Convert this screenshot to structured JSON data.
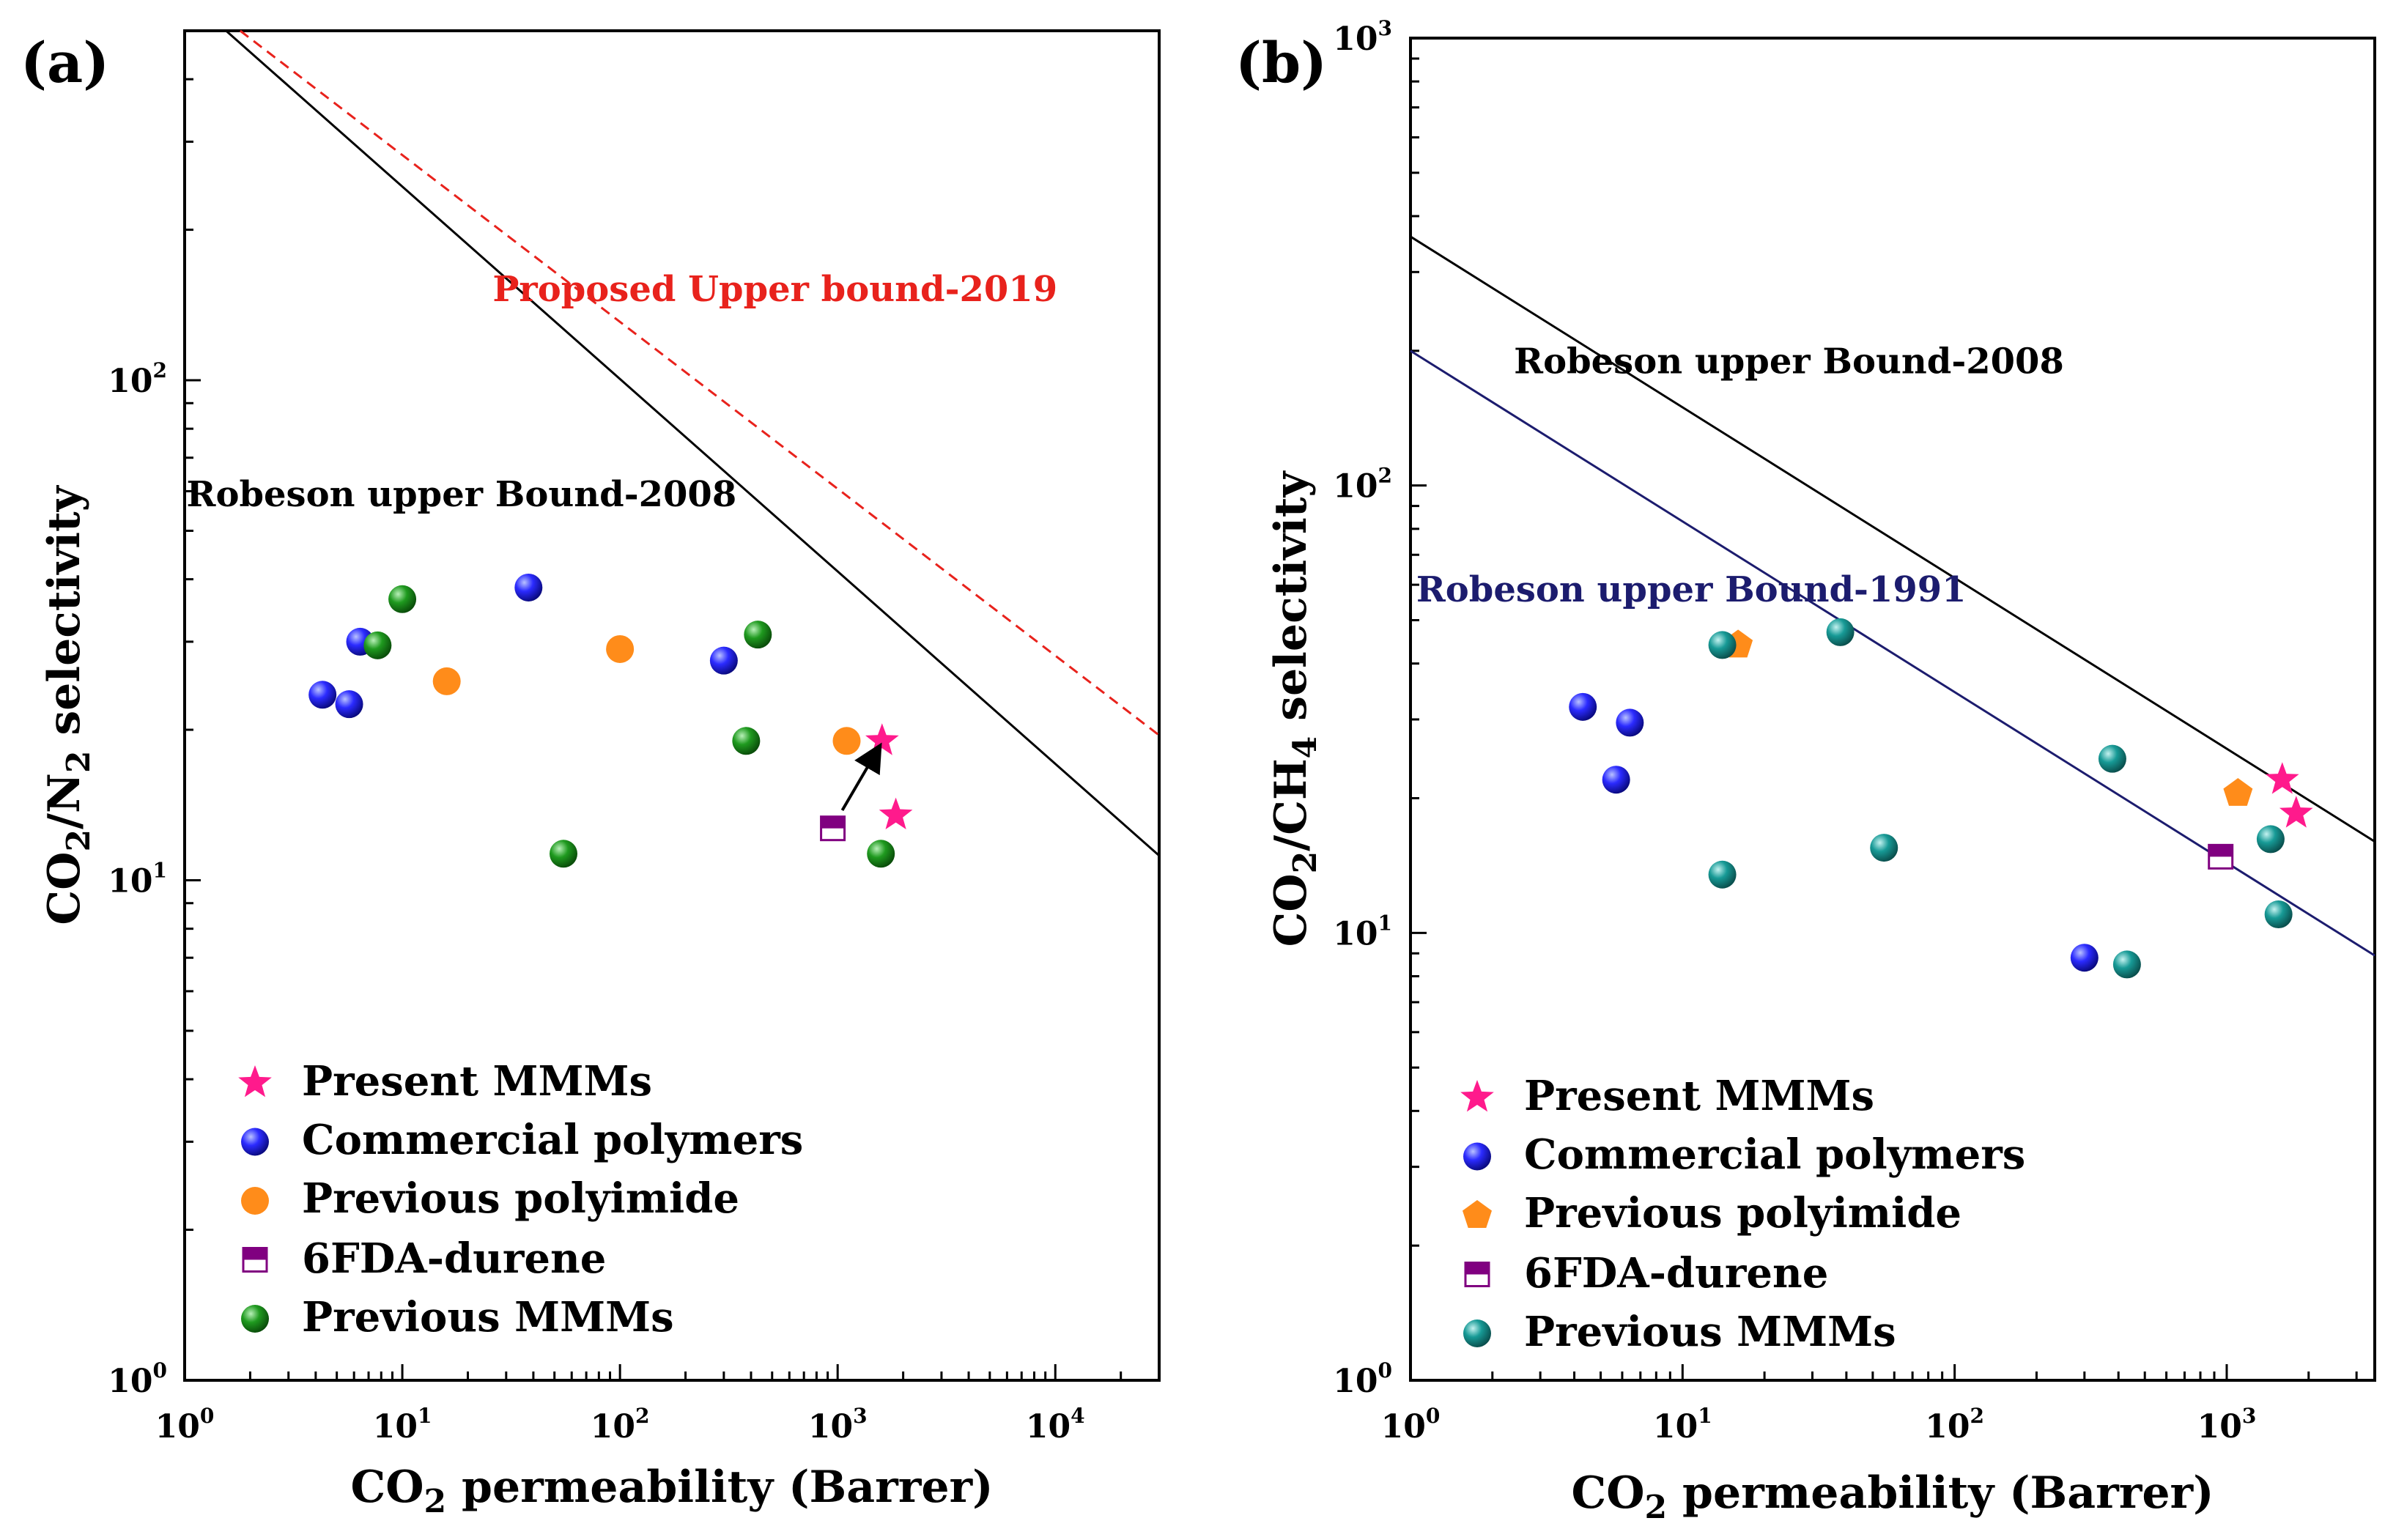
{
  "chart_data": [
    {
      "type": "scatter",
      "panel_label": "(a)",
      "xlabel": {
        "main": "CO",
        "sub": "2",
        "rest": " permeability (Barrer)"
      },
      "ylabel": {
        "p1": "CO",
        "s1": "2",
        "p2": "/N",
        "s2": "2",
        "p3": " selectivity"
      },
      "x_scale": "log",
      "y_scale": "log",
      "xlim": [
        1,
        30000
      ],
      "ylim": [
        1,
        500
      ],
      "x_ticks": [
        {
          "value": 1,
          "base": "10",
          "exp": "0"
        },
        {
          "value": 10,
          "base": "10",
          "exp": "1"
        },
        {
          "value": 100,
          "base": "10",
          "exp": "2"
        },
        {
          "value": 1000,
          "base": "10",
          "exp": "3"
        },
        {
          "value": 10000,
          "base": "10",
          "exp": "4"
        }
      ],
      "y_ticks": [
        {
          "value": 1,
          "base": "10",
          "exp": "0"
        },
        {
          "value": 10,
          "base": "10",
          "exp": "1"
        },
        {
          "value": 100,
          "base": "10",
          "exp": "2"
        }
      ],
      "lines": [
        {
          "name": "Robeson upper Bound-2008",
          "color": "#000000",
          "dash": false,
          "points": [
            [
              1.55,
              500
            ],
            [
              30000,
              11.2
            ]
          ]
        },
        {
          "name": "Proposed Upper bound-2019",
          "color": "#e8221c",
          "dash": true,
          "points": [
            [
              1.8,
              500
            ],
            [
              30000,
              19.5
            ]
          ]
        }
      ],
      "line_labels": [
        {
          "text": "Robeson upper Bound-2008",
          "color": "#000000",
          "at": [
            1.02,
            56
          ]
        },
        {
          "text": "Proposed Upper bound-2019",
          "color": "#e8221c",
          "at": [
            26,
            144
          ]
        }
      ],
      "series": [
        {
          "name": "Present MMMs",
          "marker": "star",
          "color": "#ff1a8c",
          "points": [
            [
              1600,
              19
            ],
            [
              1850,
              13.5
            ]
          ]
        },
        {
          "name": "Commercial polymers",
          "marker": "sphere",
          "color": "#1a1aff",
          "points": [
            [
              4.3,
              23.5
            ],
            [
              5.7,
              22.5
            ],
            [
              6.4,
              30
            ],
            [
              38,
              38.5
            ],
            [
              300,
              27.5
            ]
          ]
        },
        {
          "name": "Previous polyimide",
          "marker": "circle",
          "color": "#ff8c1a",
          "points": [
            [
              16,
              25
            ],
            [
              100,
              29
            ],
            [
              1100,
              19
            ]
          ]
        },
        {
          "name": "6FDA-durene",
          "marker": "halfsquare",
          "color": "#800080",
          "points": [
            [
              950,
              12.7
            ]
          ]
        },
        {
          "name": "Previous MMMs",
          "marker": "sphere",
          "color": "#1a8c1a",
          "points": [
            [
              10,
              36.5
            ],
            [
              7.7,
              29.5
            ],
            [
              55,
              11.3
            ],
            [
              380,
              19
            ],
            [
              430,
              31
            ],
            [
              1580,
              11.3
            ]
          ]
        }
      ],
      "arrow": {
        "from": [
          1050,
          13.8
        ],
        "to": [
          1500,
          18
        ]
      }
    },
    {
      "type": "scatter",
      "panel_label": "(b)",
      "xlabel": {
        "main": "CO",
        "sub": "2",
        "rest": " permeability (Barrer)"
      },
      "ylabel": {
        "p1": "CO",
        "s1": "2",
        "p2": "/CH",
        "s2": "4",
        "p3": " selectivity"
      },
      "x_scale": "log",
      "y_scale": "log",
      "xlim": [
        1,
        3500
      ],
      "ylim": [
        1,
        1000
      ],
      "x_ticks": [
        {
          "value": 1,
          "base": "10",
          "exp": "0"
        },
        {
          "value": 10,
          "base": "10",
          "exp": "1"
        },
        {
          "value": 100,
          "base": "10",
          "exp": "2"
        },
        {
          "value": 1000,
          "base": "10",
          "exp": "3"
        }
      ],
      "y_ticks": [
        {
          "value": 1,
          "base": "10",
          "exp": "0"
        },
        {
          "value": 10,
          "base": "10",
          "exp": "1"
        },
        {
          "value": 100,
          "base": "10",
          "exp": "2"
        },
        {
          "value": 1000,
          "base": "10",
          "exp": "3"
        }
      ],
      "lines": [
        {
          "name": "Robeson upper Bound-2008",
          "color": "#000000",
          "dash": false,
          "points": [
            [
              1,
              360
            ],
            [
              3500,
              16
            ]
          ]
        },
        {
          "name": "Robeson upper Bound-1991",
          "color": "#1c1c6e",
          "dash": false,
          "points": [
            [
              1,
              200
            ],
            [
              3500,
              8.9
            ]
          ]
        }
      ],
      "line_labels": [
        {
          "text": "Robeson upper Bound-2008",
          "color": "#000000",
          "at": [
            2.4,
            178
          ]
        },
        {
          "text": "Robeson upper Bound-1991",
          "color": "#1c1c6e",
          "at": [
            1.05,
            55
          ]
        }
      ],
      "series": [
        {
          "name": "Present MMMs",
          "marker": "star",
          "color": "#ff1a8c",
          "points": [
            [
              1600,
              22
            ],
            [
              1800,
              18.5
            ]
          ]
        },
        {
          "name": "Commercial polymers",
          "marker": "sphere",
          "color": "#1a1aff",
          "points": [
            [
              4.3,
              32
            ],
            [
              6.4,
              29.5
            ],
            [
              5.7,
              22
            ],
            [
              300,
              8.8
            ]
          ]
        },
        {
          "name": "Previous polyimide",
          "marker": "pentagon",
          "color": "#ff8c1a",
          "points": [
            [
              16,
              44
            ],
            [
              1100,
              20.5
            ]
          ]
        },
        {
          "name": "6FDA-durene",
          "marker": "halfsquare",
          "color": "#800080",
          "points": [
            [
              950,
              14.8
            ]
          ]
        },
        {
          "name": "Previous MMMs",
          "marker": "sphere",
          "color": "#178a8a",
          "points": [
            [
              14,
              44
            ],
            [
              14,
              13.5
            ],
            [
              38,
              47
            ],
            [
              55,
              15.5
            ],
            [
              380,
              24.5
            ],
            [
              430,
              8.5
            ],
            [
              1450,
              16.2
            ],
            [
              1550,
              11
            ]
          ]
        }
      ]
    }
  ]
}
